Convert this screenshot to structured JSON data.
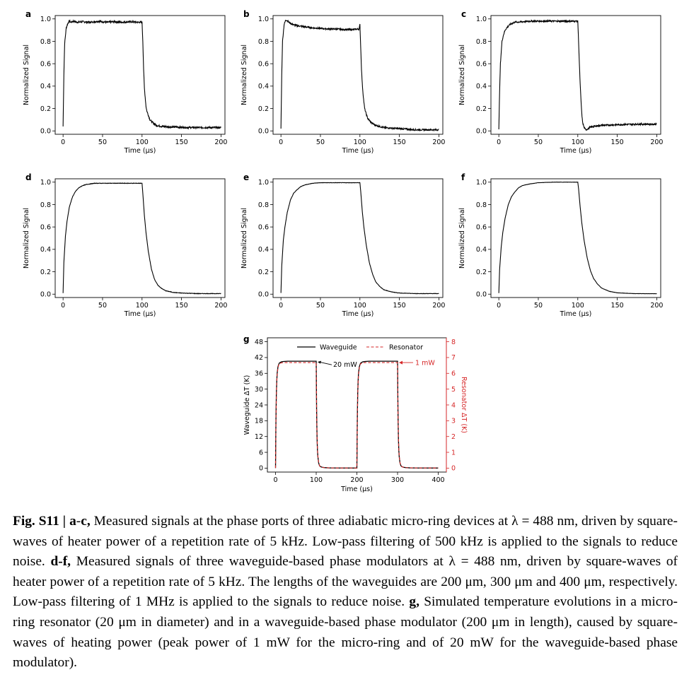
{
  "chart_data": [
    {
      "type": "line",
      "panel": "a",
      "xlabel": "Time (μs)",
      "ylabel": "Normalized Signal",
      "xlim": [
        -10,
        205
      ],
      "ylim": [
        -0.03,
        1.03
      ],
      "xticks": [
        0,
        50,
        100,
        150,
        200
      ],
      "yticks": [
        0.0,
        0.2,
        0.4,
        0.6,
        0.8,
        1.0
      ],
      "x": [
        0,
        1,
        2,
        4,
        6,
        8,
        10,
        13,
        18,
        25,
        35,
        45,
        55,
        65,
        75,
        85,
        95,
        100,
        101,
        102,
        103,
        104,
        105,
        106,
        108,
        110,
        114,
        118,
        125,
        140,
        160,
        180,
        200
      ],
      "values": [
        0.04,
        0.5,
        0.78,
        0.92,
        0.96,
        0.98,
        0.97,
        0.98,
        0.97,
        0.975,
        0.97,
        0.98,
        0.97,
        0.975,
        0.97,
        0.975,
        0.97,
        0.97,
        0.8,
        0.55,
        0.38,
        0.3,
        0.22,
        0.18,
        0.14,
        0.1,
        0.07,
        0.05,
        0.04,
        0.035,
        0.03,
        0.03,
        0.03
      ],
      "noise": 0.008
    },
    {
      "type": "line",
      "panel": "b",
      "xlabel": "Time (μs)",
      "ylabel": "Normalized Signal",
      "xlim": [
        -10,
        205
      ],
      "ylim": [
        -0.03,
        1.03
      ],
      "xticks": [
        0,
        50,
        100,
        150,
        200
      ],
      "yticks": [
        0.0,
        0.2,
        0.4,
        0.6,
        0.8,
        1.0
      ],
      "x": [
        0,
        1,
        2,
        4,
        6,
        8,
        10,
        15,
        20,
        30,
        40,
        50,
        60,
        70,
        80,
        90,
        99,
        100,
        101,
        102,
        103,
        104,
        105,
        106,
        108,
        110,
        115,
        120,
        130,
        150,
        170,
        190,
        200
      ],
      "values": [
        0.02,
        0.5,
        0.8,
        0.95,
        0.99,
        0.985,
        0.97,
        0.95,
        0.94,
        0.93,
        0.92,
        0.915,
        0.91,
        0.91,
        0.905,
        0.905,
        0.91,
        0.95,
        0.75,
        0.55,
        0.42,
        0.33,
        0.26,
        0.2,
        0.15,
        0.11,
        0.07,
        0.05,
        0.03,
        0.02,
        0.01,
        0.01,
        0.01
      ],
      "noise": 0.007
    },
    {
      "type": "line",
      "panel": "c",
      "xlabel": "Time (μs)",
      "ylabel": "Normalized Signal",
      "xlim": [
        -10,
        205
      ],
      "ylim": [
        -0.03,
        1.03
      ],
      "xticks": [
        0,
        50,
        100,
        150,
        200
      ],
      "yticks": [
        0.0,
        0.2,
        0.4,
        0.6,
        0.8,
        1.0
      ],
      "x": [
        0,
        1,
        2,
        4,
        6,
        8,
        10,
        14,
        20,
        30,
        40,
        50,
        60,
        70,
        80,
        90,
        100,
        101,
        102,
        103,
        104,
        105,
        106,
        108,
        110,
        112,
        115,
        120,
        130,
        150,
        170,
        190,
        200
      ],
      "values": [
        0.02,
        0.35,
        0.6,
        0.8,
        0.86,
        0.9,
        0.92,
        0.95,
        0.97,
        0.975,
        0.98,
        0.98,
        0.98,
        0.98,
        0.98,
        0.98,
        0.98,
        0.8,
        0.6,
        0.42,
        0.28,
        0.16,
        0.08,
        0.03,
        0.01,
        0.015,
        0.03,
        0.04,
        0.05,
        0.055,
        0.06,
        0.06,
        0.06
      ],
      "noise": 0.007
    },
    {
      "type": "line",
      "panel": "d",
      "xlabel": "Time (μs)",
      "ylabel": "Normalized Signal",
      "xlim": [
        -10,
        205
      ],
      "ylim": [
        -0.03,
        1.03
      ],
      "xticks": [
        0,
        50,
        100,
        150,
        200
      ],
      "yticks": [
        0.0,
        0.2,
        0.4,
        0.6,
        0.8,
        1.0
      ],
      "x": [
        0,
        1,
        3,
        5,
        8,
        12,
        16,
        20,
        25,
        30,
        40,
        50,
        70,
        100,
        101,
        103,
        105,
        108,
        112,
        116,
        120,
        125,
        130,
        140,
        150,
        170,
        200
      ],
      "values": [
        0.01,
        0.28,
        0.52,
        0.65,
        0.78,
        0.87,
        0.92,
        0.95,
        0.97,
        0.98,
        0.99,
        0.99,
        0.99,
        0.99,
        0.9,
        0.7,
        0.55,
        0.38,
        0.22,
        0.13,
        0.08,
        0.05,
        0.03,
        0.015,
        0.01,
        0.005,
        0.005
      ],
      "noise": 0.002
    },
    {
      "type": "line",
      "panel": "e",
      "xlabel": "Time (μs)",
      "ylabel": "Normalized Signal",
      "xlim": [
        -10,
        205
      ],
      "ylim": [
        -0.03,
        1.03
      ],
      "xticks": [
        0,
        50,
        100,
        150,
        200
      ],
      "yticks": [
        0.0,
        0.2,
        0.4,
        0.6,
        0.8,
        1.0
      ],
      "x": [
        0,
        1,
        3,
        5,
        8,
        12,
        16,
        20,
        25,
        30,
        40,
        50,
        70,
        100,
        101,
        103,
        105,
        108,
        112,
        116,
        120,
        125,
        130,
        140,
        150,
        170,
        200
      ],
      "values": [
        0.01,
        0.25,
        0.48,
        0.6,
        0.73,
        0.84,
        0.9,
        0.93,
        0.96,
        0.975,
        0.99,
        0.995,
        0.995,
        0.995,
        0.92,
        0.74,
        0.6,
        0.44,
        0.28,
        0.18,
        0.11,
        0.07,
        0.04,
        0.02,
        0.01,
        0.005,
        0.005
      ],
      "noise": 0.0015
    },
    {
      "type": "line",
      "panel": "f",
      "xlabel": "Time (μs)",
      "ylabel": "Normalized Signal",
      "xlim": [
        -10,
        205
      ],
      "ylim": [
        -0.03,
        1.03
      ],
      "xticks": [
        0,
        50,
        100,
        150,
        200
      ],
      "yticks": [
        0.0,
        0.2,
        0.4,
        0.6,
        0.8,
        1.0
      ],
      "x": [
        0,
        1,
        3,
        5,
        8,
        12,
        16,
        20,
        25,
        30,
        40,
        50,
        70,
        100,
        101,
        103,
        105,
        108,
        112,
        116,
        120,
        125,
        130,
        140,
        150,
        170,
        200
      ],
      "values": [
        0.01,
        0.22,
        0.42,
        0.55,
        0.68,
        0.8,
        0.87,
        0.91,
        0.95,
        0.97,
        0.985,
        0.995,
        1.0,
        1.0,
        0.94,
        0.78,
        0.64,
        0.48,
        0.32,
        0.21,
        0.14,
        0.09,
        0.055,
        0.025,
        0.012,
        0.005,
        0.004
      ],
      "noise": 0.001
    },
    {
      "type": "line",
      "panel": "g",
      "xlabel": "Time (μs)",
      "ylabel": "Waveguide ΔT (K)",
      "y2label": "Resonator ΔT (K)",
      "xlim": [
        -20,
        420
      ],
      "ylim": [
        -1.5,
        49.5
      ],
      "y2lim": [
        -0.25,
        8.25
      ],
      "xticks": [
        0,
        100,
        200,
        300,
        400
      ],
      "yticks": [
        0,
        6,
        12,
        18,
        24,
        30,
        36,
        42,
        48
      ],
      "y2ticks": [
        0,
        1,
        2,
        3,
        4,
        5,
        6,
        7,
        8
      ],
      "legend_position": "top",
      "series": [
        {
          "name": "Waveguide",
          "color": "#000000",
          "style": "solid",
          "axis": "left",
          "x": [
            0,
            1,
            2,
            3,
            4,
            6,
            8,
            10,
            15,
            20,
            30,
            50,
            100,
            101,
            102,
            103,
            104,
            106,
            108,
            110,
            115,
            120,
            130,
            150,
            200,
            201,
            202,
            203,
            204,
            206,
            208,
            210,
            215,
            220,
            230,
            250,
            300,
            301,
            302,
            303,
            304,
            306,
            308,
            310,
            315,
            320,
            330,
            350,
            400
          ],
          "values": [
            0,
            18,
            28,
            33,
            36,
            38.5,
            39.5,
            40,
            40.4,
            40.5,
            40.6,
            40.6,
            40.6,
            22,
            12,
            7,
            4.5,
            2,
            1,
            0.6,
            0.3,
            0.2,
            0.1,
            0.05,
            0.03,
            18,
            28,
            33,
            36,
            38.5,
            39.5,
            40,
            40.4,
            40.5,
            40.6,
            40.6,
            40.6,
            22,
            12,
            7,
            4.5,
            2,
            1,
            0.6,
            0.3,
            0.2,
            0.1,
            0.05,
            0.03
          ]
        },
        {
          "name": "Resonator",
          "color": "#d62728",
          "style": "dashed",
          "axis": "right",
          "x": [
            0,
            1,
            2,
            3,
            4,
            6,
            8,
            10,
            15,
            20,
            30,
            50,
            100,
            101,
            102,
            103,
            104,
            106,
            108,
            110,
            115,
            120,
            130,
            150,
            200,
            201,
            202,
            203,
            204,
            206,
            208,
            210,
            215,
            220,
            230,
            250,
            300,
            301,
            302,
            303,
            304,
            306,
            308,
            310,
            315,
            320,
            330,
            350,
            400
          ],
          "values": [
            0,
            2.9,
            4.5,
            5.4,
            5.9,
            6.35,
            6.55,
            6.62,
            6.67,
            6.68,
            6.68,
            6.68,
            6.68,
            3.7,
            2.1,
            1.25,
            0.8,
            0.35,
            0.18,
            0.1,
            0.05,
            0.03,
            0.02,
            0.01,
            0.01,
            2.9,
            4.5,
            5.4,
            5.9,
            6.35,
            6.55,
            6.62,
            6.67,
            6.68,
            6.68,
            6.68,
            6.68,
            3.7,
            2.1,
            1.25,
            0.8,
            0.35,
            0.18,
            0.1,
            0.05,
            0.03,
            0.02,
            0.01,
            0.01
          ]
        }
      ],
      "annotations": [
        {
          "text": "20 mW",
          "points_to": {
            "x": 100,
            "y": 40.6
          },
          "color": "#000000"
        },
        {
          "text": "1 mW",
          "points_to": {
            "x": 300,
            "y": 6.68
          },
          "color": "#d62728"
        }
      ]
    }
  ],
  "caption": {
    "label": "Fig. S11 |",
    "part1_bold": "a",
    "part1_dash": "-",
    "part1_bold2": "c,",
    "part1_text": " Measured signals at the phase ports of three adiabatic micro-ring devices at λ = 488 nm, driven by square-waves of heater power of a repetition rate of 5 kHz. Low-pass filtering of 500 kHz is applied to the signals to reduce noise. ",
    "part2_bold": "d-f,",
    "part2_text": " Measured signals of three waveguide-based phase modulators at λ = 488 nm, driven by square-waves of heater power of a repetition rate of 5 kHz. The lengths of the waveguides are 200 μm, 300 μm and 400 μm, respectively. Low-pass filtering of 1 MHz is applied to the signals to reduce noise. ",
    "part3_bold": "g,",
    "part3_text": " Simulated temperature evolutions in a micro-ring resonator (20 μm in diameter) and in a waveguide-based phase modulator (200 μm in length), caused by square-waves of heating power (peak power of 1 mW for the micro-ring and of 20 mW for the waveguide-based phase modulator)."
  }
}
